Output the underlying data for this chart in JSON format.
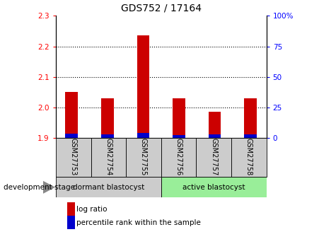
{
  "title": "GDS752 / 17164",
  "categories": [
    "GSM27753",
    "GSM27754",
    "GSM27755",
    "GSM27756",
    "GSM27757",
    "GSM27758"
  ],
  "log_ratio": [
    2.05,
    2.03,
    2.235,
    2.03,
    1.985,
    2.03
  ],
  "percentile_rank": [
    3.5,
    3.0,
    4.0,
    2.5,
    3.0,
    3.0
  ],
  "baseline": 1.9,
  "ylim_left": [
    1.9,
    2.3
  ],
  "ylim_right": [
    0,
    100
  ],
  "yticks_left": [
    1.9,
    2.0,
    2.1,
    2.2,
    2.3
  ],
  "yticks_right": [
    0,
    25,
    50,
    75,
    100
  ],
  "bar_color_red": "#cc0000",
  "bar_color_blue": "#0000cc",
  "group1_label": "dormant blastocyst",
  "group2_label": "active blastocyst",
  "group1_color": "#cccccc",
  "group2_color": "#99ee99",
  "legend_red": "log ratio",
  "legend_blue": "percentile rank within the sample",
  "annotation": "development stage",
  "bar_width": 0.35,
  "title_fontsize": 10,
  "tick_fontsize": 7.5,
  "label_fontsize": 7,
  "group_fontsize": 7.5
}
